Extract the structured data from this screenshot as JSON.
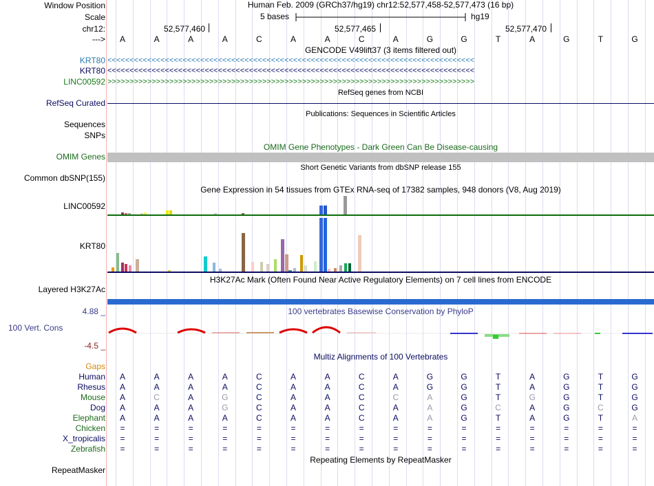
{
  "header": {
    "window_position_label": "Window Position",
    "window_position_text": "Human Feb. 2009 (GRCh37/hg19)   chr12:52,577,458-52,577,473 (16 bp)",
    "scale_label": "Scale",
    "scale_text": "5 bases",
    "scale_db": "hg19",
    "chrom_label": "chr12:",
    "ruler_ticks": [
      "52,577,460",
      "52,577,465",
      "52,577,470"
    ],
    "strand_label": "--->",
    "sequence": [
      "A",
      "A",
      "A",
      "A",
      "C",
      "A",
      "A",
      "C",
      "A",
      "G",
      "G",
      "T",
      "A",
      "G",
      "T",
      "G"
    ]
  },
  "tracks": {
    "gencode": {
      "title": "GENCODE V49lift37 (3 items filtered out)",
      "rows": [
        {
          "label": "KRT80",
          "color": "#2a7ab0",
          "glyph": "<<<<<<<<<<<<<<<<<<<<<<<<<<<<<<<<<<<<<<<<<<<<<<<<<<<<<<<<<<<<<<<<<<<<<<<<<<<<<<<<<<<"
        },
        {
          "label": "KRT80",
          "color": "#0a0a60",
          "glyph": "<<<<<<<<<<<<<<<<<<<<<<<<<<<<<<<<<<<<<<<<<<<<<<<<<<<<<<<<<<<<<<<<<<<<<<<<<<<<<<<<<<<"
        },
        {
          "label": "LINC00592",
          "color": "#1a7a1a",
          "glyph": ">>>>>>>>>>>>>>>>>>>>>>>>>>>>>>>>>>>>>>>>>>>>>>>>>>>>>>>>>>>>>>>>>>>>>>>>>>>>>>>>>>>"
        }
      ]
    },
    "refseq": {
      "title": "RefSeq genes from NCBI",
      "label": "RefSeq Curated",
      "color": "#0a0a60"
    },
    "publications": {
      "title": "Publications: Sequences in Scientific Articles",
      "label_1": "Sequences",
      "label_2": "SNPs"
    },
    "omim": {
      "title": "OMIM Gene Phenotypes - Dark Green Can Be Disease-causing",
      "label": "OMIM Genes",
      "color": "#1a6a1a"
    },
    "dbsnp": {
      "title": "Short Genetic Variants from dbSNP release 155",
      "label": "Common dbSNP(155)"
    },
    "gtex": {
      "title": "Gene Expression in 54 tissues from GTEx RNA-seq of 17382 samples, 948 donors (V8, Aug 2019)",
      "rows": [
        {
          "label": "LINC00592",
          "baseline_color": "#0a6a0a"
        },
        {
          "label": "KRT80",
          "baseline_color": "#0a0a60"
        }
      ]
    },
    "h3k27ac": {
      "title": "H3K27Ac Mark (Often Found Near Active Regulatory Elements) on 7 cell lines from ENCODE",
      "label": "Layered H3K27Ac",
      "color": "#2a6ad0"
    },
    "phylop": {
      "title": "100 vertebrates Basewise Conservation by PhyloP",
      "label": "100 Vert. Cons",
      "max_label": "4.88 _",
      "min_label": "-4.5 _"
    },
    "multiz": {
      "title": "Multiz Alignments of 100 Vertebrates",
      "gaps_label": "Gaps"
    },
    "repeatmasker": {
      "title": "Repeating Elements by RepeatMasker",
      "label": "RepeatMasker"
    }
  },
  "alignments": [
    {
      "species": "Human",
      "color": "#0a0a60",
      "bases": [
        "A",
        "A",
        "A",
        "A",
        "C",
        "A",
        "A",
        "C",
        "A",
        "G",
        "G",
        "T",
        "A",
        "G",
        "T",
        "G"
      ],
      "dim": []
    },
    {
      "species": "Rhesus",
      "color": "#0a0a60",
      "bases": [
        "A",
        "A",
        "A",
        "A",
        "C",
        "A",
        "A",
        "C",
        "A",
        "G",
        "G",
        "T",
        "A",
        "G",
        "T",
        "G"
      ],
      "dim": []
    },
    {
      "species": "Mouse",
      "color": "#1a6a1a",
      "bases": [
        "A",
        "C",
        "A",
        "G",
        "C",
        "A",
        "A",
        "C",
        "C",
        "A",
        "G",
        "T",
        "G",
        "G",
        "T",
        "G"
      ],
      "dim": [
        1,
        3,
        8,
        9,
        12
      ]
    },
    {
      "species": "Dog",
      "color": "#0a0a60",
      "bases": [
        "A",
        "A",
        "A",
        "G",
        "C",
        "A",
        "A",
        "C",
        "A",
        "A",
        "G",
        "C",
        "A",
        "G",
        "C",
        "G"
      ],
      "dim": [
        3,
        9,
        11,
        14
      ]
    },
    {
      "species": "Elephant",
      "color": "#1a6a1a",
      "bases": [
        "A",
        "A",
        "A",
        "A",
        "C",
        "A",
        "A",
        "C",
        "A",
        "A",
        "G",
        "T",
        "A",
        "G",
        "T",
        "A"
      ],
      "dim": [
        9,
        15
      ]
    },
    {
      "species": "Chicken",
      "color": "#1a6a1a",
      "bases": [
        "=",
        "=",
        "=",
        "=",
        "=",
        "=",
        "=",
        "=",
        "=",
        "=",
        "=",
        "=",
        "=",
        "=",
        "=",
        "="
      ],
      "dim": []
    },
    {
      "species": "X_tropicalis",
      "color": "#0a0a60",
      "bases": [
        "=",
        "=",
        "=",
        "=",
        "=",
        "=",
        "=",
        "=",
        "=",
        "=",
        "=",
        "=",
        "=",
        "=",
        "=",
        "="
      ],
      "dim": []
    },
    {
      "species": "Zebrafish",
      "color": "#1a6a1a",
      "bases": [
        "=",
        "=",
        "=",
        "=",
        "=",
        "=",
        "=",
        "=",
        "=",
        "=",
        "=",
        "=",
        "=",
        "=",
        "=",
        "="
      ],
      "dim": []
    }
  ]
}
